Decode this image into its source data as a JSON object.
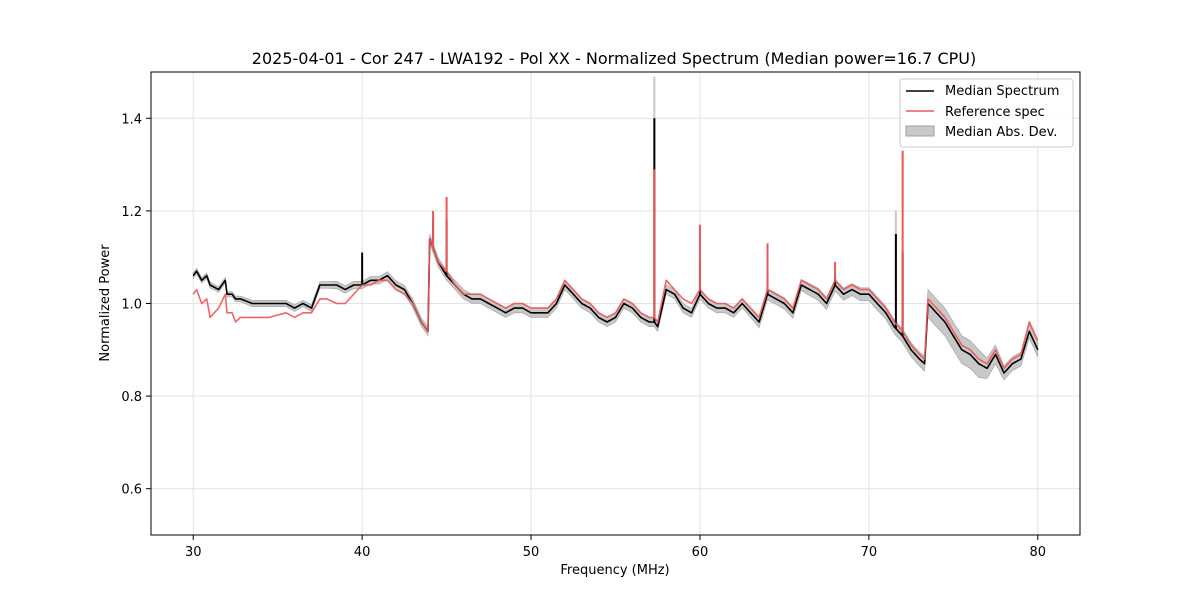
{
  "chart_data": {
    "type": "line",
    "title": "2025-04-01 - Cor 247 - LWA192 - Pol XX - Normalized Spectrum (Median power=16.7 CPU)",
    "xlabel": "Frequency (MHz)",
    "ylabel": "Normalized Power",
    "xlim": [
      27.5,
      82.5
    ],
    "ylim": [
      0.5,
      1.5
    ],
    "xticks": [
      30,
      40,
      50,
      60,
      70,
      80
    ],
    "yticks": [
      0.6,
      0.8,
      1.0,
      1.2,
      1.4
    ],
    "xtick_labels": [
      "30",
      "40",
      "50",
      "60",
      "70",
      "80"
    ],
    "ytick_labels": [
      "0.6",
      "0.8",
      "1.0",
      "1.2",
      "1.4"
    ],
    "grid": true,
    "legend_position": "top-right",
    "legend": [
      "Median Spectrum",
      "Reference spec",
      "Median Abs. Dev."
    ],
    "colors": {
      "median": "#000000",
      "reference": "#ee5555",
      "mad_fill": "#c8c8c8",
      "mad_edge": "#a0a0a0",
      "grid": "#e4e4e4"
    },
    "series": [
      {
        "name": "Median Spectrum",
        "x": [
          30.0,
          30.2,
          30.5,
          30.8,
          31.0,
          31.5,
          31.9,
          32.0,
          32.3,
          32.5,
          32.8,
          33.5,
          34.5,
          35.5,
          36.0,
          36.5,
          37.0,
          37.5,
          37.9,
          38.5,
          39.0,
          39.5,
          40.0,
          40.5,
          41.0,
          41.5,
          42.0,
          42.5,
          43.0,
          43.5,
          43.9,
          44.0,
          44.5,
          45.0,
          45.5,
          46.0,
          46.5,
          47.0,
          47.5,
          48.0,
          48.5,
          49.0,
          49.5,
          50.0,
          50.5,
          51.0,
          51.5,
          52.0,
          52.5,
          53.0,
          53.5,
          54.0,
          54.5,
          55.0,
          55.5,
          56.0,
          56.5,
          57.0,
          57.3,
          57.5,
          58.0,
          58.5,
          59.0,
          59.5,
          60.0,
          60.5,
          61.0,
          61.5,
          62.0,
          62.5,
          63.0,
          63.5,
          64.0,
          64.5,
          65.0,
          65.5,
          66.0,
          66.5,
          67.0,
          67.5,
          68.0,
          68.5,
          69.0,
          69.5,
          70.0,
          70.5,
          71.0,
          71.5,
          72.0,
          72.5,
          73.0,
          73.3,
          73.5,
          74.0,
          74.5,
          75.0,
          75.5,
          76.0,
          76.5,
          77.0,
          77.5,
          78.0,
          78.5,
          79.0,
          79.5,
          80.0
        ],
        "values": [
          1.06,
          1.07,
          1.05,
          1.06,
          1.04,
          1.03,
          1.05,
          1.02,
          1.02,
          1.01,
          1.01,
          1.0,
          1.0,
          1.0,
          0.99,
          1.0,
          0.99,
          1.04,
          1.04,
          1.04,
          1.03,
          1.04,
          1.04,
          1.05,
          1.05,
          1.06,
          1.04,
          1.03,
          1.0,
          0.96,
          0.94,
          1.14,
          1.09,
          1.06,
          1.04,
          1.02,
          1.01,
          1.01,
          1.0,
          0.99,
          0.98,
          0.99,
          0.99,
          0.98,
          0.98,
          0.98,
          1.0,
          1.04,
          1.02,
          1.0,
          0.99,
          0.97,
          0.96,
          0.97,
          1.0,
          0.99,
          0.97,
          0.96,
          0.96,
          0.95,
          1.03,
          1.02,
          0.99,
          0.98,
          1.02,
          1.0,
          0.99,
          0.99,
          0.98,
          1.0,
          0.98,
          0.96,
          1.02,
          1.01,
          1.0,
          0.98,
          1.04,
          1.03,
          1.02,
          1.0,
          1.04,
          1.02,
          1.03,
          1.02,
          1.02,
          1.0,
          0.98,
          0.95,
          0.93,
          0.9,
          0.88,
          0.87,
          1.0,
          0.98,
          0.96,
          0.93,
          0.9,
          0.89,
          0.87,
          0.86,
          0.89,
          0.85,
          0.87,
          0.88,
          0.94,
          0.9
        ],
        "spikes": [
          {
            "x": 40.0,
            "y": 1.11
          },
          {
            "x": 44.2,
            "y": 1.18
          },
          {
            "x": 45.0,
            "y": 1.18
          },
          {
            "x": 57.3,
            "y": 1.4
          },
          {
            "x": 60.0,
            "y": 1.09
          },
          {
            "x": 64.0,
            "y": 1.06
          },
          {
            "x": 68.0,
            "y": 1.06
          },
          {
            "x": 71.6,
            "y": 1.15
          },
          {
            "x": 72.0,
            "y": 1.11
          }
        ]
      },
      {
        "name": "Reference spec",
        "x": [
          30.0,
          30.2,
          30.5,
          30.8,
          31.0,
          31.5,
          31.9,
          32.0,
          32.3,
          32.5,
          32.8,
          33.5,
          34.5,
          35.5,
          36.0,
          36.5,
          37.0,
          37.5,
          37.9,
          38.5,
          39.0,
          39.5,
          40.0,
          40.5,
          41.0,
          41.5,
          42.0,
          42.5,
          43.0,
          43.5,
          43.9,
          44.0,
          44.5,
          45.0,
          45.5,
          46.0,
          46.5,
          47.0,
          47.5,
          48.0,
          48.5,
          49.0,
          49.5,
          50.0,
          50.5,
          51.0,
          51.5,
          52.0,
          52.5,
          53.0,
          53.5,
          54.0,
          54.5,
          55.0,
          55.5,
          56.0,
          56.5,
          57.0,
          57.3,
          57.5,
          58.0,
          58.5,
          59.0,
          59.5,
          60.0,
          60.5,
          61.0,
          61.5,
          62.0,
          62.5,
          63.0,
          63.5,
          64.0,
          64.5,
          65.0,
          65.5,
          66.0,
          66.5,
          67.0,
          67.5,
          68.0,
          68.5,
          69.0,
          69.5,
          70.0,
          70.5,
          71.0,
          71.5,
          72.0,
          72.5,
          73.0,
          73.3,
          73.5,
          74.0,
          74.5,
          75.0,
          75.5,
          76.0,
          76.5,
          77.0,
          77.5,
          78.0,
          78.5,
          79.0,
          79.5,
          80.0
        ],
        "values": [
          1.02,
          1.03,
          1.0,
          1.01,
          0.97,
          0.99,
          1.02,
          0.98,
          0.98,
          0.96,
          0.97,
          0.97,
          0.97,
          0.98,
          0.97,
          0.98,
          0.98,
          1.01,
          1.01,
          1.0,
          1.0,
          1.02,
          1.04,
          1.04,
          1.05,
          1.05,
          1.03,
          1.02,
          1.0,
          0.96,
          0.94,
          1.14,
          1.09,
          1.07,
          1.04,
          1.02,
          1.02,
          1.02,
          1.01,
          1.0,
          0.99,
          1.0,
          1.0,
          0.99,
          0.99,
          0.99,
          1.01,
          1.05,
          1.03,
          1.01,
          1.0,
          0.98,
          0.97,
          0.98,
          1.01,
          1.0,
          0.98,
          0.97,
          0.97,
          0.96,
          1.05,
          1.03,
          1.01,
          1.0,
          1.03,
          1.01,
          1.0,
          1.0,
          0.99,
          1.01,
          0.99,
          0.97,
          1.03,
          1.02,
          1.01,
          0.99,
          1.05,
          1.04,
          1.03,
          1.01,
          1.05,
          1.03,
          1.04,
          1.03,
          1.03,
          1.01,
          0.99,
          0.96,
          0.94,
          0.91,
          0.89,
          0.88,
          1.01,
          0.99,
          0.97,
          0.94,
          0.91,
          0.9,
          0.88,
          0.87,
          0.9,
          0.86,
          0.88,
          0.89,
          0.96,
          0.92
        ],
        "spikes": [
          {
            "x": 44.2,
            "y": 1.2
          },
          {
            "x": 45.0,
            "y": 1.23
          },
          {
            "x": 57.3,
            "y": 1.29
          },
          {
            "x": 60.0,
            "y": 1.17
          },
          {
            "x": 64.0,
            "y": 1.13
          },
          {
            "x": 68.0,
            "y": 1.09
          },
          {
            "x": 72.0,
            "y": 1.33
          }
        ]
      },
      {
        "name": "Median Abs. Dev.",
        "x": [
          30.0,
          30.2,
          30.5,
          30.8,
          31.0,
          31.5,
          31.9,
          32.0,
          32.3,
          32.5,
          32.8,
          33.5,
          34.5,
          35.5,
          36.0,
          36.5,
          37.0,
          37.5,
          37.9,
          38.5,
          39.0,
          39.5,
          40.0,
          40.5,
          41.0,
          41.5,
          42.0,
          42.5,
          43.0,
          43.5,
          43.9,
          44.0,
          44.5,
          45.0,
          45.5,
          46.0,
          46.5,
          47.0,
          47.5,
          48.0,
          48.5,
          49.0,
          49.5,
          50.0,
          50.5,
          51.0,
          51.5,
          52.0,
          52.5,
          53.0,
          53.5,
          54.0,
          54.5,
          55.0,
          55.5,
          56.0,
          56.5,
          57.0,
          57.3,
          57.5,
          58.0,
          58.5,
          59.0,
          59.5,
          60.0,
          60.5,
          61.0,
          61.5,
          62.0,
          62.5,
          63.0,
          63.5,
          64.0,
          64.5,
          65.0,
          65.5,
          66.0,
          66.5,
          67.0,
          67.5,
          68.0,
          68.5,
          69.0,
          69.5,
          70.0,
          70.5,
          71.0,
          71.5,
          72.0,
          72.5,
          73.0,
          73.3,
          73.5,
          74.0,
          74.5,
          75.0,
          75.5,
          76.0,
          76.5,
          77.0,
          77.5,
          78.0,
          78.5,
          79.0,
          79.5,
          80.0
        ],
        "mad": [
          0.006,
          0.006,
          0.006,
          0.006,
          0.006,
          0.006,
          0.006,
          0.006,
          0.006,
          0.006,
          0.006,
          0.007,
          0.007,
          0.007,
          0.007,
          0.007,
          0.007,
          0.007,
          0.007,
          0.008,
          0.008,
          0.008,
          0.008,
          0.008,
          0.008,
          0.009,
          0.009,
          0.009,
          0.009,
          0.009,
          0.009,
          0.01,
          0.01,
          0.01,
          0.01,
          0.01,
          0.01,
          0.01,
          0.01,
          0.01,
          0.01,
          0.01,
          0.01,
          0.01,
          0.01,
          0.01,
          0.01,
          0.01,
          0.01,
          0.01,
          0.01,
          0.01,
          0.01,
          0.01,
          0.01,
          0.01,
          0.01,
          0.01,
          0.01,
          0.01,
          0.01,
          0.01,
          0.01,
          0.01,
          0.01,
          0.01,
          0.01,
          0.01,
          0.01,
          0.01,
          0.01,
          0.012,
          0.012,
          0.012,
          0.012,
          0.012,
          0.012,
          0.013,
          0.013,
          0.013,
          0.013,
          0.013,
          0.013,
          0.014,
          0.014,
          0.014,
          0.014,
          0.015,
          0.015,
          0.015,
          0.015,
          0.016,
          0.03,
          0.03,
          0.03,
          0.03,
          0.03,
          0.03,
          0.03,
          0.022,
          0.02,
          0.015,
          0.015,
          0.015,
          0.015,
          0.015
        ],
        "spikes": [
          {
            "x": 57.3,
            "y": 1.49
          },
          {
            "x": 71.6,
            "y": 1.2
          }
        ]
      }
    ]
  }
}
